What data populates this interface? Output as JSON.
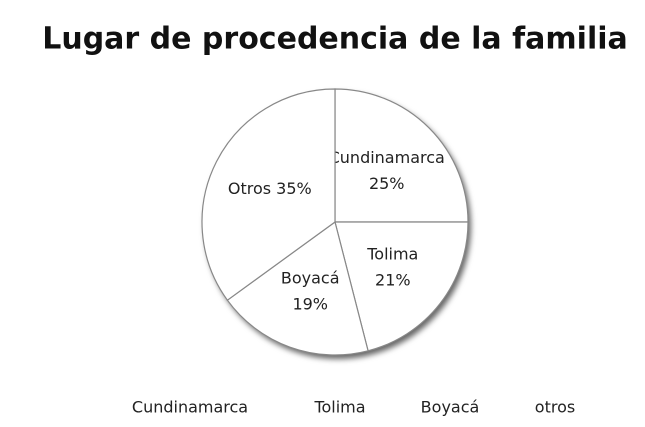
{
  "chart_data": {
    "type": "pie",
    "title": "Lugar de procedencia de la familia",
    "categories": [
      "Cundinamarca",
      "Tolima",
      "Boyacá",
      "otros"
    ],
    "slice_labels": [
      "Cundinamarca",
      "Tolima",
      "Boyacá",
      "Otros"
    ],
    "values": [
      25,
      21,
      19,
      35
    ],
    "value_labels": [
      "25%",
      "21%",
      "19%",
      "35%"
    ],
    "color": "#ffffff",
    "legend": "bottom"
  }
}
